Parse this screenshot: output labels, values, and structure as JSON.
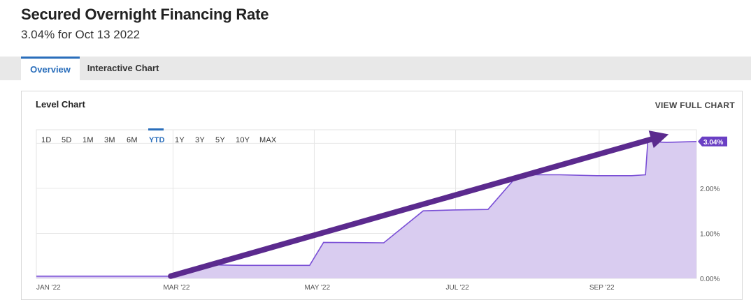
{
  "header": {
    "title": "Secured Overnight Financing Rate",
    "subtitle": "3.04% for Oct 13 2022"
  },
  "tabs": [
    {
      "label": "Overview",
      "active": true
    },
    {
      "label": "Interactive Chart",
      "active": false
    }
  ],
  "card": {
    "title": "Level Chart",
    "link_label": "VIEW FULL CHART"
  },
  "range_buttons": [
    {
      "label": "1D",
      "active": false
    },
    {
      "label": "5D",
      "active": false
    },
    {
      "label": "1M",
      "active": false
    },
    {
      "label": "3M",
      "active": false
    },
    {
      "label": "6M",
      "active": false
    },
    {
      "label": "YTD",
      "active": true
    },
    {
      "label": "1Y",
      "active": false
    },
    {
      "label": "3Y",
      "active": false
    },
    {
      "label": "5Y",
      "active": false
    },
    {
      "label": "10Y",
      "active": false
    },
    {
      "label": "MAX",
      "active": false
    }
  ],
  "colors": {
    "accent": "#2a6ebb",
    "series_line": "#7a4fd6",
    "series_fill": "#d9ccf0",
    "last_value_badge": "#6a3fc4",
    "annotation_arrow": "#5b2a8e"
  },
  "chart_data": {
    "type": "area",
    "title": "",
    "xlabel": "",
    "ylabel": "",
    "x_tick_labels": [
      "JAN '22",
      "MAR '22",
      "MAY '22",
      "JUL '22",
      "SEP '22"
    ],
    "y_tick_labels": [
      "0.00%",
      "1.00%",
      "2.00%"
    ],
    "ylim": [
      0,
      3.3
    ],
    "xlim": [
      "2022-01-01",
      "2022-10-13"
    ],
    "grid": true,
    "last_value_label": "3.04%",
    "series": [
      {
        "x": [
          "2022-01-01",
          "2022-02-28",
          "2022-03-17",
          "2022-03-31",
          "2022-04-29",
          "2022-05-05",
          "2022-05-31",
          "2022-06-17",
          "2022-06-30",
          "2022-07-15",
          "2022-07-28",
          "2022-08-15",
          "2022-08-31",
          "2022-09-15",
          "2022-09-21",
          "2022-09-22",
          "2022-09-30",
          "2022-10-13"
        ],
        "y": [
          0.05,
          0.05,
          0.3,
          0.29,
          0.29,
          0.8,
          0.79,
          1.5,
          1.52,
          1.53,
          2.3,
          2.3,
          2.28,
          2.28,
          2.3,
          3.04,
          3.02,
          3.04
        ]
      }
    ],
    "annotations": [
      {
        "type": "arrow",
        "from": [
          "2022-02-28",
          0.05
        ],
        "to": [
          "2022-10-01",
          3.2
        ]
      }
    ]
  }
}
